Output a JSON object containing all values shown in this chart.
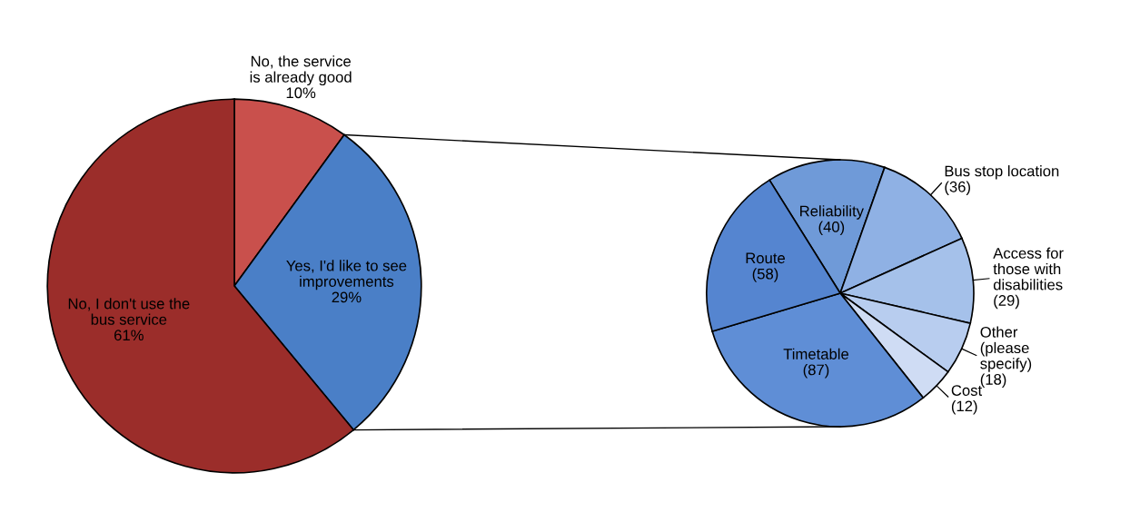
{
  "chart_data": [
    {
      "type": "pie",
      "categories": [
        "No, the service\nis already good",
        "Yes, I'd like to see\nimprovements",
        "No, I don't use the\nbus service"
      ],
      "values": [
        10,
        29,
        61
      ],
      "value_labels": [
        "10%",
        "29%",
        "61%"
      ],
      "colors": [
        "#c9504c",
        "#4a7fc7",
        "#9b2d2a"
      ]
    },
    {
      "type": "pie",
      "categories": [
        "Reliability",
        "Bus stop location",
        "Access for\nthose with\ndisabilities",
        "Other\n(please\nspecify)",
        "Cost",
        "Timetable",
        "Route"
      ],
      "values": [
        40,
        36,
        29,
        18,
        12,
        87,
        58
      ],
      "value_labels": [
        "(40)",
        "(36)",
        "(29)",
        "(18)",
        "(12)",
        "(87)",
        "(58)"
      ],
      "colors": [
        "#6f9ad8",
        "#8fb1e4",
        "#a5c1ea",
        "#b8cdef",
        "#cfdcf4",
        "#5f8ed6",
        "#5585d0"
      ]
    }
  ]
}
